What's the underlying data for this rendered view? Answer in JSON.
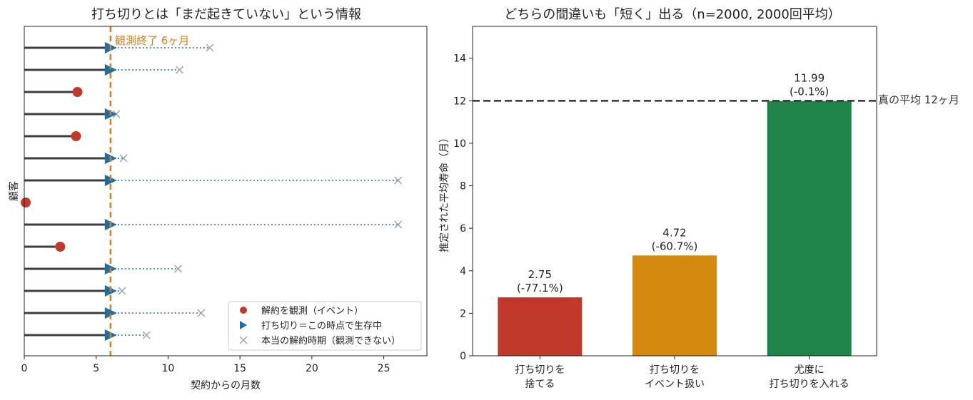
{
  "chart_data": [
    {
      "type": "scatter",
      "title": "打ち切りとは「まだ起きていない」という情報",
      "xlabel": "契約からの月数",
      "ylabel": "顧客",
      "xlim": [
        0,
        28
      ],
      "xticks": [
        "0",
        "5",
        "10",
        "15",
        "20",
        "25"
      ],
      "observation_end": 6,
      "observation_end_label": "観測終了 6ヶ月",
      "legend_position": "lower-right",
      "legend": [
        {
          "name": "解約を観測（イベント）",
          "marker": "circle",
          "color": "#c0392b"
        },
        {
          "name": "打ち切り＝この時点で生存中",
          "marker": "triangle",
          "color": "#1f6fa0"
        },
        {
          "name": "本当の解約時期（観測できない）",
          "marker": "x",
          "color": "#9aa3b8"
        }
      ],
      "customers": [
        {
          "type": "censored",
          "observed": 6,
          "true": 12.9
        },
        {
          "type": "censored",
          "observed": 6,
          "true": 10.8
        },
        {
          "type": "event",
          "observed": 3.7
        },
        {
          "type": "censored",
          "observed": 6,
          "true": 6.4
        },
        {
          "type": "event",
          "observed": 3.6
        },
        {
          "type": "censored",
          "observed": 6,
          "true": 6.9
        },
        {
          "type": "censored",
          "observed": 6,
          "true": 26
        },
        {
          "type": "event",
          "observed": 0.1
        },
        {
          "type": "censored",
          "observed": 6,
          "true": 26
        },
        {
          "type": "event",
          "observed": 2.5
        },
        {
          "type": "censored",
          "observed": 6,
          "true": 10.7
        },
        {
          "type": "censored",
          "observed": 6,
          "true": 6.8
        },
        {
          "type": "censored",
          "observed": 6,
          "true": 12.3
        },
        {
          "type": "censored",
          "observed": 6,
          "true": 8.5
        }
      ],
      "colors": {
        "line": "#3d3d3d",
        "event": "#c0392b",
        "censored": "#1f6fa0",
        "true": "#9aa3b8",
        "obs_end": "#e07b1a"
      }
    },
    {
      "type": "bar",
      "title": "どちらの間違いも「短く」出る（n=2000, 2000回平均）",
      "ylabel": "推定された平均寿命（月）",
      "ylim": [
        0,
        15.5
      ],
      "yticks": [
        "0",
        "2",
        "4",
        "6",
        "8",
        "10",
        "12",
        "14"
      ],
      "categories": [
        [
          "打ち切りを",
          "捨てる"
        ],
        [
          "打ち切りを",
          "イベント扱い"
        ],
        [
          "尤度に",
          "打ち切りを入れる"
        ]
      ],
      "values": [
        2.75,
        4.72,
        11.99
      ],
      "value_labels": [
        "2.75",
        "4.72",
        "11.99"
      ],
      "pct_labels": [
        "(-77.1%)",
        "(-60.7%)",
        "(-0.1%)"
      ],
      "bar_colors": [
        "#c0392b",
        "#d4890f",
        "#1f8449"
      ],
      "true_value": 12,
      "true_label": "真の平均 12ヶ月"
    }
  ]
}
